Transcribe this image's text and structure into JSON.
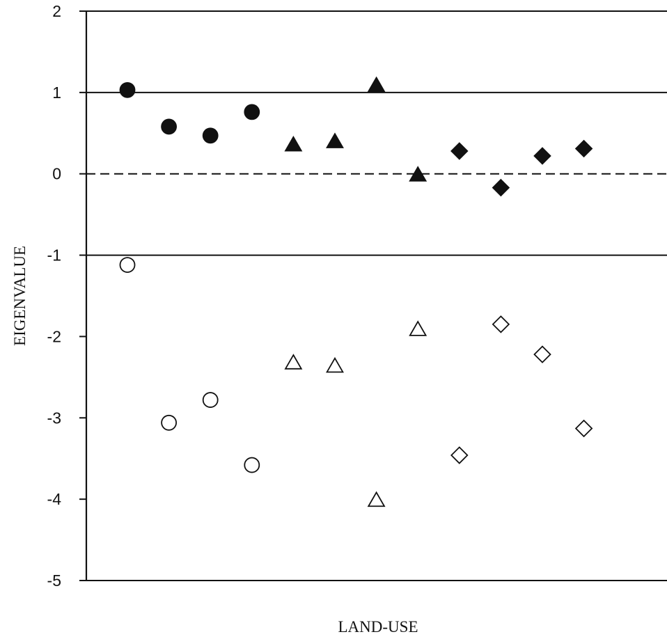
{
  "chart_data": {
    "type": "scatter",
    "title": "",
    "xlabel": "LAND-USE",
    "ylabel": "EIGENVALUE",
    "ylim": [
      -5,
      2
    ],
    "yticks": [
      "2",
      "1",
      "0",
      "-1",
      "-2",
      "-3",
      "-4",
      "-5"
    ],
    "reference_lines": [
      {
        "y": 2,
        "style": "solid"
      },
      {
        "y": 1,
        "style": "solid"
      },
      {
        "y": 0,
        "style": "dashed"
      },
      {
        "y": -1,
        "style": "solid"
      },
      {
        "y": -5,
        "style": "solid"
      }
    ],
    "x": [
      1,
      2,
      3,
      4,
      5,
      6,
      7,
      8,
      9,
      10,
      11,
      12
    ],
    "grid": false,
    "legend": "none",
    "series": [
      {
        "marker": "circle",
        "filled": true,
        "color": "#111111",
        "points": [
          [
            1,
            1.03
          ],
          [
            2,
            0.58
          ],
          [
            3,
            0.47
          ],
          [
            4,
            0.76
          ]
        ]
      },
      {
        "marker": "circle",
        "filled": false,
        "color": "#111111",
        "points": [
          [
            1,
            -1.12
          ],
          [
            2,
            -3.06
          ],
          [
            3,
            -2.78
          ],
          [
            4,
            -3.58
          ]
        ]
      },
      {
        "marker": "triangle",
        "filled": true,
        "color": "#111111",
        "points": [
          [
            5,
            0.35
          ],
          [
            6,
            0.39
          ],
          [
            7,
            1.08
          ],
          [
            8,
            -0.02
          ]
        ]
      },
      {
        "marker": "triangle",
        "filled": false,
        "color": "#111111",
        "points": [
          [
            5,
            -2.33
          ],
          [
            6,
            -2.37
          ],
          [
            7,
            -4.02
          ],
          [
            8,
            -1.92
          ]
        ]
      },
      {
        "marker": "diamond",
        "filled": true,
        "color": "#111111",
        "points": [
          [
            9,
            0.28
          ],
          [
            10,
            -0.17
          ],
          [
            11,
            0.22
          ],
          [
            12,
            0.31
          ]
        ]
      },
      {
        "marker": "diamond",
        "filled": false,
        "color": "#111111",
        "points": [
          [
            9,
            -3.46
          ],
          [
            10,
            -1.85
          ],
          [
            11,
            -2.22
          ],
          [
            12,
            -3.13
          ]
        ]
      }
    ]
  }
}
